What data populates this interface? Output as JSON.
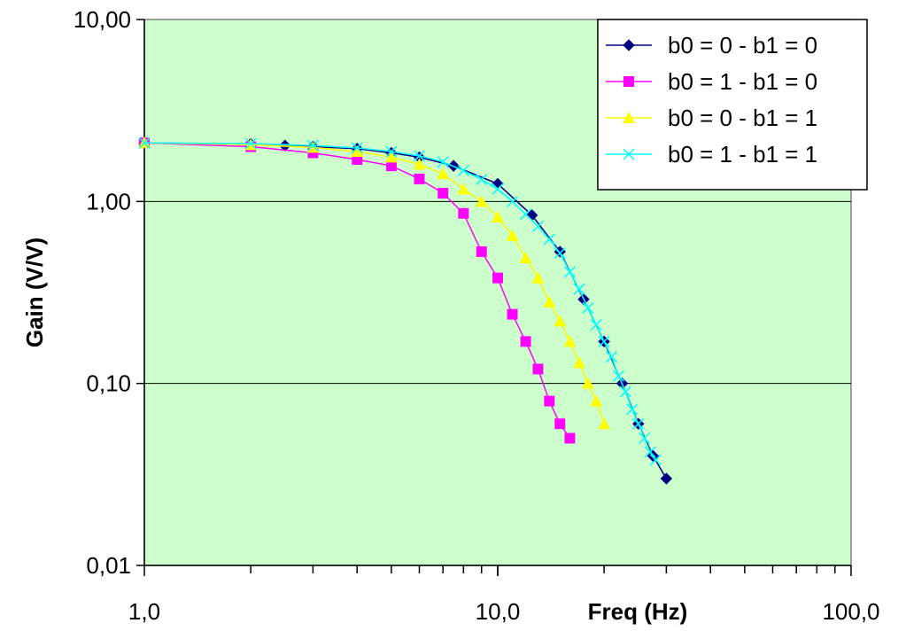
{
  "chart_data": {
    "type": "line",
    "title": "",
    "xlabel": "Freq (Hz)",
    "ylabel": "Gain (V/V)",
    "x_scale": "log",
    "y_scale": "log",
    "xlim": [
      1,
      100
    ],
    "ylim": [
      0.01,
      10
    ],
    "x_ticks": [
      1,
      10,
      100
    ],
    "x_tick_labels": [
      "1,0",
      "10,0",
      "100,0"
    ],
    "y_ticks": [
      0.01,
      0.1,
      1,
      10
    ],
    "y_tick_labels": [
      "0,01",
      "0,10",
      "1,00",
      "10,00"
    ],
    "grid": "horizontal major lines",
    "plot_background": "#CCFFCC",
    "legend_position": "top-right",
    "series": [
      {
        "name": "b0 = 0 - b1 = 0",
        "color": "#000080",
        "marker": "diamond",
        "points": [
          [
            1,
            2.1
          ],
          [
            2,
            2.07
          ],
          [
            2.5,
            2.03
          ],
          [
            3,
            2.0
          ],
          [
            4,
            1.95
          ],
          [
            5,
            1.85
          ],
          [
            6,
            1.75
          ],
          [
            7.5,
            1.57
          ],
          [
            10,
            1.25
          ],
          [
            12.5,
            0.84
          ],
          [
            15,
            0.53
          ],
          [
            17.5,
            0.29
          ],
          [
            20,
            0.17
          ],
          [
            22.5,
            0.1
          ],
          [
            25,
            0.06
          ],
          [
            27.5,
            0.04
          ],
          [
            30,
            0.03
          ]
        ]
      },
      {
        "name": "b0 = 1 - b1 = 0",
        "color": "#FF00FF",
        "marker": "square",
        "points": [
          [
            1,
            2.1
          ],
          [
            2,
            2.0
          ],
          [
            3,
            1.85
          ],
          [
            4,
            1.7
          ],
          [
            5,
            1.57
          ],
          [
            6,
            1.33
          ],
          [
            7,
            1.11
          ],
          [
            8,
            0.86
          ],
          [
            9,
            0.53
          ],
          [
            10,
            0.38
          ],
          [
            11,
            0.24
          ],
          [
            12,
            0.17
          ],
          [
            13,
            0.12
          ],
          [
            14,
            0.08
          ],
          [
            15,
            0.06
          ],
          [
            16,
            0.05
          ]
        ]
      },
      {
        "name": "b0 = 0 - b1 = 1",
        "color": "#FFFF00",
        "marker": "triangle",
        "points": [
          [
            1,
            2.1
          ],
          [
            2,
            2.05
          ],
          [
            3,
            1.98
          ],
          [
            4,
            1.88
          ],
          [
            5,
            1.75
          ],
          [
            6,
            1.6
          ],
          [
            7,
            1.42
          ],
          [
            8,
            1.17
          ],
          [
            9,
            1.0
          ],
          [
            10,
            0.82
          ],
          [
            11,
            0.65
          ],
          [
            12,
            0.49
          ],
          [
            13,
            0.38
          ],
          [
            14,
            0.28
          ],
          [
            15,
            0.22
          ],
          [
            16,
            0.17
          ],
          [
            17,
            0.13
          ],
          [
            18,
            0.1
          ],
          [
            19,
            0.08
          ],
          [
            20,
            0.06
          ]
        ]
      },
      {
        "name": "b0 = 1 - b1 = 1",
        "color": "#00FFFF",
        "marker": "x",
        "points": [
          [
            1,
            2.1
          ],
          [
            2,
            2.08
          ],
          [
            3,
            2.03
          ],
          [
            4,
            1.97
          ],
          [
            5,
            1.88
          ],
          [
            6,
            1.78
          ],
          [
            7,
            1.65
          ],
          [
            8,
            1.48
          ],
          [
            9,
            1.32
          ],
          [
            10,
            1.17
          ],
          [
            11,
            1.0
          ],
          [
            12,
            0.85
          ],
          [
            13,
            0.73
          ],
          [
            14,
            0.62
          ],
          [
            15,
            0.52
          ],
          [
            16,
            0.41
          ],
          [
            17,
            0.33
          ],
          [
            18,
            0.26
          ],
          [
            19,
            0.21
          ],
          [
            20,
            0.17
          ],
          [
            21,
            0.14
          ],
          [
            22,
            0.11
          ],
          [
            23,
            0.09
          ],
          [
            24,
            0.072
          ],
          [
            25,
            0.06
          ],
          [
            26,
            0.05
          ],
          [
            27,
            0.042
          ],
          [
            28,
            0.038
          ]
        ]
      }
    ]
  }
}
